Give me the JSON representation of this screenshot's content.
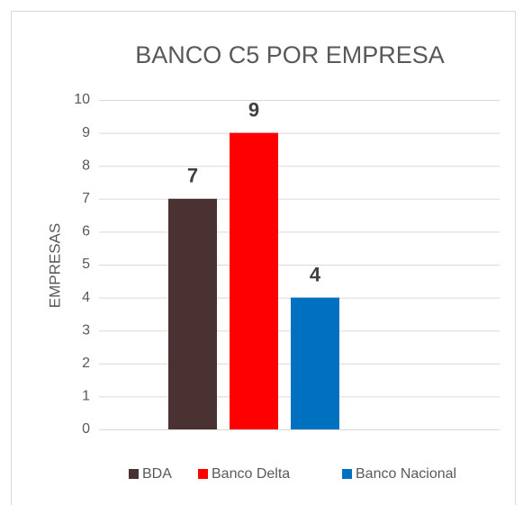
{
  "chart_data": {
    "type": "bar",
    "title": "BANCO C5 POR EMPRESA",
    "y_label": "EMPRESAS",
    "categories": [
      null
    ],
    "series": [
      {
        "name": "BDA",
        "color": "#4b3232",
        "values": [
          7
        ]
      },
      {
        "name": "Banco Delta",
        "color": "#ff0000",
        "values": [
          9
        ]
      },
      {
        "name": "Banco Nacional",
        "color": "#0070c0",
        "values": [
          4
        ]
      }
    ],
    "ylim": [
      0,
      10
    ],
    "yticks": [
      0,
      1,
      2,
      3,
      4,
      5,
      6,
      7,
      8,
      9,
      10
    ],
    "grid": true,
    "legend": "bottom",
    "data_labels": true
  }
}
